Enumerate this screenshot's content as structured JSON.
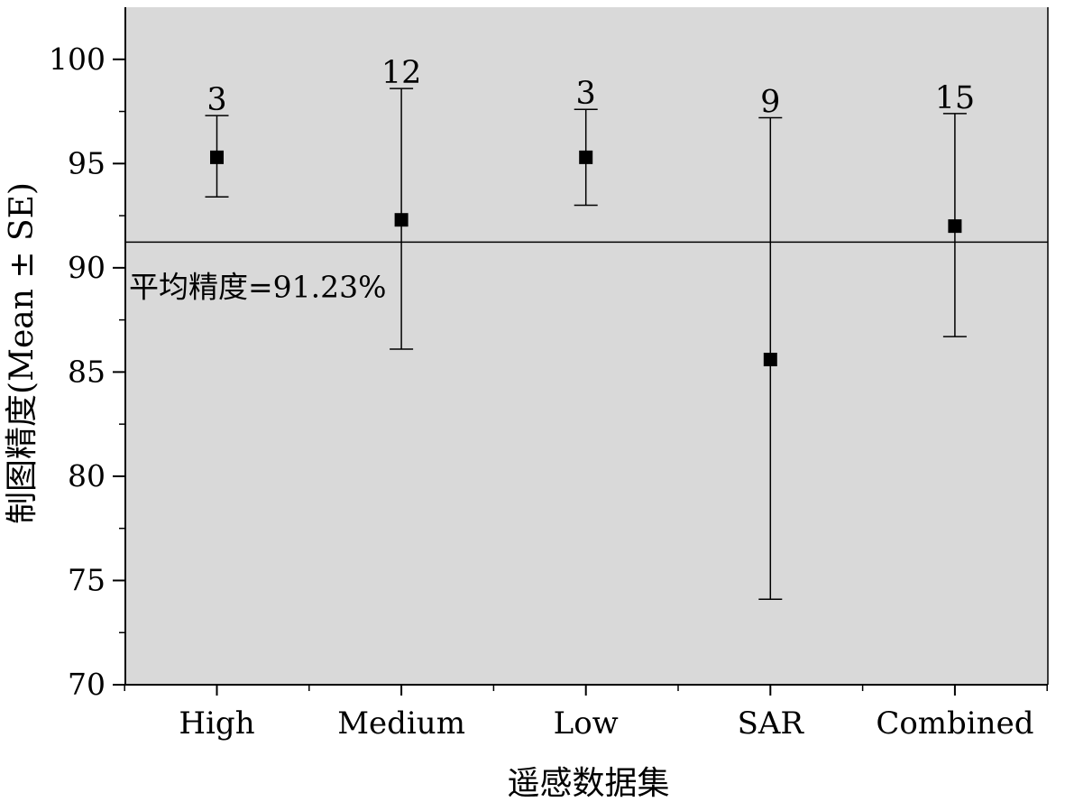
{
  "chart_data": {
    "type": "scatter",
    "xlabel": "遥感数据集",
    "ylabel": "制图精度(Mean ± SE)",
    "categories": [
      "High",
      "Medium",
      "Low",
      "SAR",
      "Combined"
    ],
    "series": [
      {
        "values": [
          95.3,
          92.3,
          95.3,
          85.6,
          92.0
        ],
        "error_low": [
          93.4,
          86.1,
          93.0,
          74.1,
          86.7
        ],
        "error_high": [
          97.3,
          98.6,
          97.6,
          97.2,
          97.4
        ],
        "counts": [
          "3",
          "12",
          "3",
          "9",
          "15"
        ]
      }
    ],
    "ylim": [
      70,
      102.5
    ],
    "yticks": [
      70,
      75,
      80,
      85,
      90,
      95,
      100
    ],
    "reference_line": {
      "value": 91.23,
      "label": "平均精度=91.23%"
    },
    "grid": false,
    "legend": "none",
    "colors": {
      "plot_background": "#d9d9d9",
      "marker": "#000000",
      "line": "#000000"
    }
  }
}
